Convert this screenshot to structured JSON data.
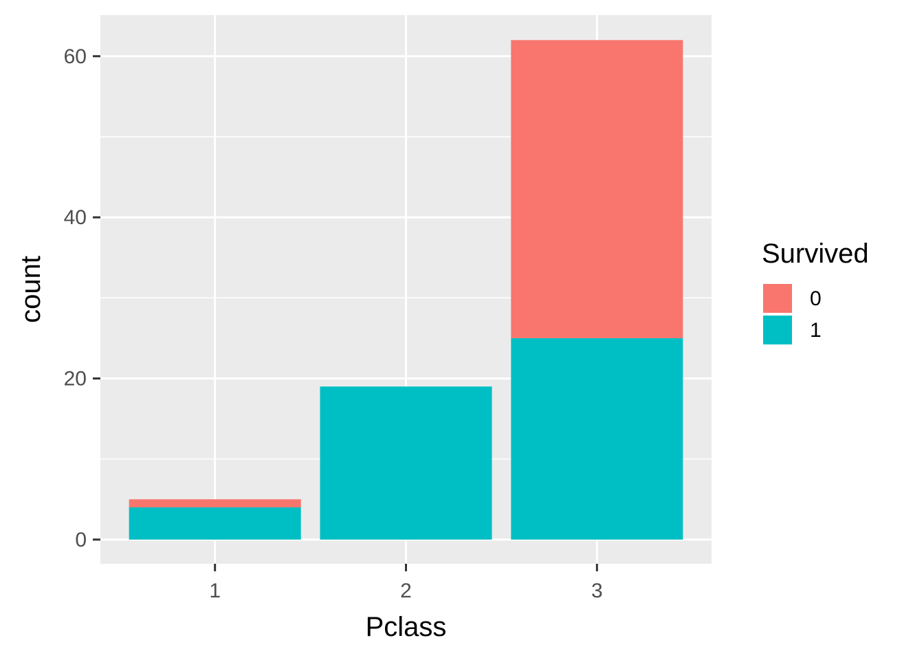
{
  "chart_data": {
    "type": "bar",
    "stacked": true,
    "categories": [
      "1",
      "2",
      "3"
    ],
    "series": [
      {
        "name": "0",
        "values": [
          1,
          0,
          37
        ],
        "color": "#F8766D"
      },
      {
        "name": "1",
        "values": [
          4,
          19,
          25
        ],
        "color": "#00BFC4"
      }
    ],
    "title": "",
    "xlabel": "Pclass",
    "ylabel": "count",
    "ylim": [
      -3,
      65.1
    ],
    "yticks": [
      0,
      20,
      40,
      60
    ],
    "grid": true,
    "legend": {
      "title": "Survived",
      "position": "right"
    },
    "panel_background": "#EBEBEB",
    "grid_color": "#FFFFFF"
  }
}
